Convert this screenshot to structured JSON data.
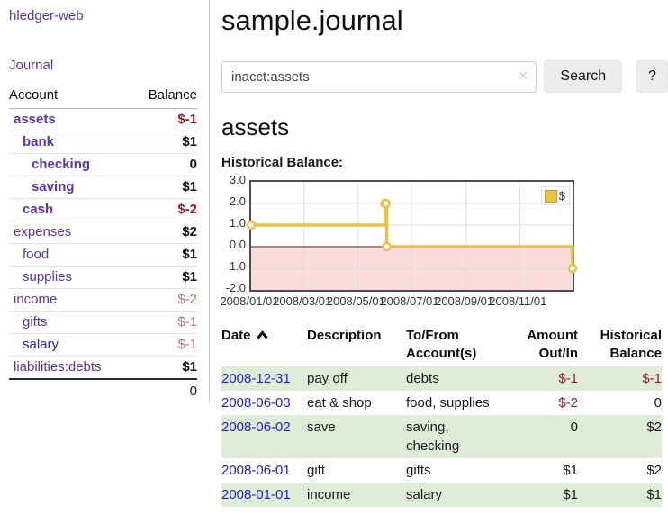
{
  "app": {
    "brand": "hledger-web",
    "nav_journal": "Journal"
  },
  "sidebar": {
    "header": {
      "account": "Account",
      "balance": "Balance"
    },
    "accounts": [
      {
        "name": "assets",
        "indent": 1,
        "bold": true,
        "balance": "$-1",
        "neg": "strong"
      },
      {
        "name": "bank",
        "indent": 2,
        "bold": true,
        "balance": "$1",
        "neg": "none"
      },
      {
        "name": "checking",
        "indent": 3,
        "bold": true,
        "balance": "0",
        "neg": "none"
      },
      {
        "name": "saving",
        "indent": 3,
        "bold": true,
        "balance": "$1",
        "neg": "none"
      },
      {
        "name": "cash",
        "indent": 2,
        "bold": true,
        "balance": "$-2",
        "neg": "strong"
      },
      {
        "name": "expenses",
        "indent": 1,
        "bold": false,
        "balance": "$2",
        "neg": "none"
      },
      {
        "name": "food",
        "indent": 2,
        "bold": false,
        "balance": "$1",
        "neg": "none"
      },
      {
        "name": "supplies",
        "indent": 2,
        "bold": false,
        "balance": "$1",
        "neg": "none"
      },
      {
        "name": "income",
        "indent": 1,
        "bold": false,
        "balance": "$-2",
        "neg": "soft"
      },
      {
        "name": "gifts",
        "indent": 2,
        "bold": false,
        "balance": "$-1",
        "neg": "soft"
      },
      {
        "name": "salary",
        "indent": 2,
        "bold": false,
        "balance": "$-1",
        "neg": "soft",
        "link_color": "blue"
      },
      {
        "name": "liabilities:debts",
        "indent": 1,
        "bold": false,
        "balance": "$1",
        "neg": "none"
      }
    ],
    "total": "0"
  },
  "header": {
    "title": "sample.journal"
  },
  "search": {
    "value": "inacct:assets",
    "clear_icon": "✕",
    "button_label": "Search",
    "help_label": "?"
  },
  "account_page": {
    "heading": "assets",
    "chart_label": "Historical Balance:"
  },
  "chart_data": {
    "type": "line",
    "title": "Historical Balance:",
    "step": true,
    "series": [
      {
        "name": "$",
        "color": "#e8c24a",
        "points": [
          [
            "2008-01-01",
            1
          ],
          [
            "2008-06-01",
            2
          ],
          [
            "2008-06-02",
            2
          ],
          [
            "2008-06-03",
            0
          ],
          [
            "2008-12-31",
            -1
          ]
        ]
      }
    ],
    "x_ticks": [
      "2008/01/01",
      "2008/03/01",
      "2008/05/01",
      "2008/07/01",
      "2008/09/01",
      "2008/11/01"
    ],
    "y_ticks": [
      3.0,
      2.0,
      1.0,
      0.0,
      -1.0,
      -2.0
    ],
    "ylim": [
      -2,
      3
    ],
    "grid": true,
    "legend": {
      "label": "$",
      "position": "top-right"
    },
    "colors": {
      "negative_region": "#fadcdc",
      "zero_line": "#8b0000",
      "gridline": "#dcdcdc",
      "plot_border": "#4d4d4d"
    }
  },
  "register": {
    "columns": [
      "Date",
      "Description",
      "To/From Account(s)",
      "Amount Out/In",
      "Historical Balance"
    ],
    "rows": [
      {
        "date": "2008-12-31",
        "description": "pay off",
        "accounts": "debts",
        "amount": "$-1",
        "amount_neg": true,
        "balance": "$-1",
        "balance_neg": true
      },
      {
        "date": "2008-06-03",
        "description": "eat & shop",
        "accounts": "food, supplies",
        "amount": "$-2",
        "amount_neg": true,
        "balance": "0",
        "balance_neg": false
      },
      {
        "date": "2008-06-02",
        "description": "save",
        "accounts": "saving, checking",
        "amount": "0",
        "amount_neg": false,
        "balance": "$2",
        "balance_neg": false
      },
      {
        "date": "2008-06-01",
        "description": "gift",
        "accounts": "gifts",
        "amount": "$1",
        "amount_neg": false,
        "balance": "$2",
        "balance_neg": false
      },
      {
        "date": "2008-01-01",
        "description": "income",
        "accounts": "salary",
        "amount": "$1",
        "amount_neg": false,
        "balance": "$1",
        "balance_neg": false
      }
    ]
  }
}
